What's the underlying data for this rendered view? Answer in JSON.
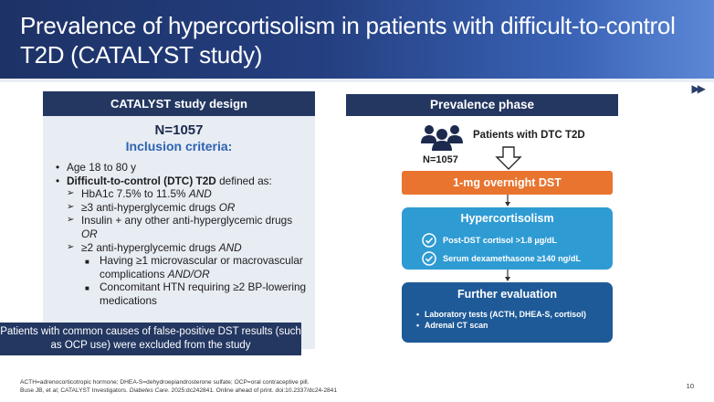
{
  "header": {
    "title": "Prevalence of hypercortisolism in patients with difficult-to-control T2D (CATALYST study)"
  },
  "nav": {
    "icon": "fast-forward-icon"
  },
  "design": {
    "header": "CATALYST study design",
    "n": "N=1057",
    "inclusion_title": "Inclusion criteria:",
    "criteria": [
      {
        "level": 1,
        "marker": "•",
        "parts": [
          {
            "text": "Age 18 to 80 y"
          }
        ]
      },
      {
        "level": 1,
        "marker": "•",
        "parts": [
          {
            "text": "Difficult-to-control (DTC) T2D",
            "style": "b"
          },
          {
            "text": " defined as:"
          }
        ]
      },
      {
        "level": 2,
        "marker": "➢",
        "parts": [
          {
            "text": "HbA1c 7.5% to 11.5% "
          },
          {
            "text": "AND",
            "style": "i"
          }
        ]
      },
      {
        "level": 2,
        "marker": "➢",
        "parts": [
          {
            "text": "≥3 anti-hyperglycemic drugs "
          },
          {
            "text": "OR",
            "style": "i"
          }
        ]
      },
      {
        "level": 2,
        "marker": "➢",
        "parts": [
          {
            "text": "Insulin + any other anti-hyperglycemic drugs "
          },
          {
            "text": "OR",
            "style": "i"
          }
        ]
      },
      {
        "level": 2,
        "marker": "➢",
        "parts": [
          {
            "text": "≥2 anti-hyperglycemic drugs "
          },
          {
            "text": "AND",
            "style": "i"
          }
        ]
      },
      {
        "level": 3,
        "marker": "■",
        "parts": [
          {
            "text": "Having ≥1 microvascular or macrovascular complications "
          },
          {
            "text": "AND/OR",
            "style": "i"
          }
        ]
      },
      {
        "level": 3,
        "marker": "■",
        "parts": [
          {
            "text": "Concomitant HTN requiring ≥2 BP-lowering medications"
          }
        ]
      }
    ],
    "exclusion": "Patients with common causes of false-positive DST results (such as OCP use) were excluded from the study"
  },
  "flow": {
    "header": "Prevalence phase",
    "people_icon": "people-group-icon",
    "patients_label": "Patients with DTC T2D",
    "n": "N=1057",
    "dst": "1-mg overnight DST",
    "hyper_title": "Hypercortisolism",
    "hyper_items": [
      "Post-DST cortisol >1.8 µg/dL",
      "Serum dexamethasone ≥140 ng/dL"
    ],
    "further_title": "Further evaluation",
    "further_items": [
      "Laboratory tests (ACTH, DHEA-S, cortisol)",
      "Adrenal CT scan"
    ]
  },
  "footer": {
    "abbreviations": "ACTH=adrenocorticotropic hormone; DHEA-S=dehydroepiandrosterone sulfate; OCP=oral contraceptive pill.",
    "citation_prefix": "Buse JB, et al; CATALYST Investigators. ",
    "citation_journal": "Diabetes Care",
    "citation_suffix": ". 2025:dc242841. Online ahead of print. doi:10.2337/dc24-2841",
    "page": "10"
  },
  "colors": {
    "navy": "#233761",
    "orange": "#e8742f",
    "sky": "#2f9bd3",
    "deep_blue": "#1e5a97",
    "inclusion_blue": "#2d63b2"
  }
}
